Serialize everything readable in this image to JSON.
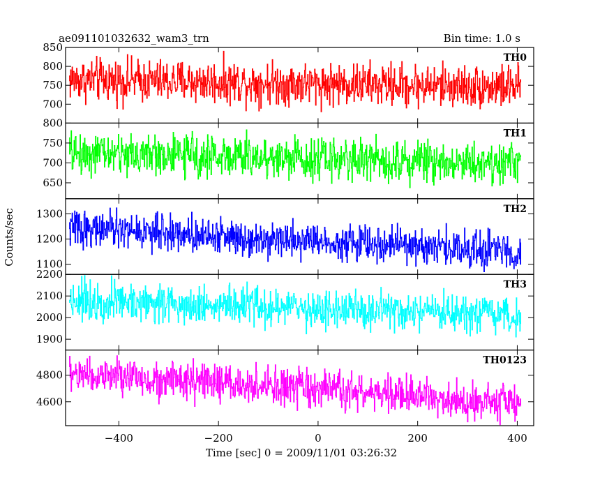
{
  "header": {
    "left": "ae091101032632_wam3_trn",
    "right": "Bin time: 1.0 s"
  },
  "chart_data": {
    "type": "line",
    "ylabel": "Counts/sec",
    "xlabel": "Time [sec] 0 = 2009/11/01 03:26:32",
    "xlim": [
      -507,
      433
    ],
    "x_ticks": [
      -400,
      -200,
      0,
      200,
      400
    ],
    "x_range": [
      -500,
      407
    ],
    "bin_time": 1.0,
    "panels": [
      {
        "name": "TH0",
        "color": "#ff0000",
        "ylim": [
          650,
          850
        ],
        "y_ticks": [
          700,
          750,
          800,
          850
        ],
        "mean_start": 765,
        "mean_end": 745,
        "noise": 28,
        "series_name": "TH0"
      },
      {
        "name": "TH1",
        "color": "#00ff00",
        "ylim": [
          610,
          800
        ],
        "y_ticks": [
          650,
          700,
          750,
          800
        ],
        "mean_start": 725,
        "mean_end": 700,
        "noise": 26,
        "series_name": "TH1"
      },
      {
        "name": "TH2",
        "color": "#0000ff",
        "ylim": [
          1060,
          1360
        ],
        "y_ticks": [
          1100,
          1200,
          1300
        ],
        "mean_start": 1245,
        "mean_end": 1150,
        "noise": 35,
        "series_name": "TH2"
      },
      {
        "name": "TH3",
        "color": "#00ffff",
        "ylim": [
          1850,
          2200
        ],
        "y_ticks": [
          1900,
          2000,
          2100,
          2200
        ],
        "mean_start": 2085,
        "mean_end": 2000,
        "noise": 45,
        "series_name": "TH3"
      },
      {
        "name": "TH0123",
        "color": "#ff00ff",
        "ylim": [
          4420,
          4990
        ],
        "y_ticks": [
          4600,
          4800
        ],
        "mean_start": 4810,
        "mean_end": 4590,
        "noise": 70,
        "series_name": "TH0123"
      }
    ]
  }
}
